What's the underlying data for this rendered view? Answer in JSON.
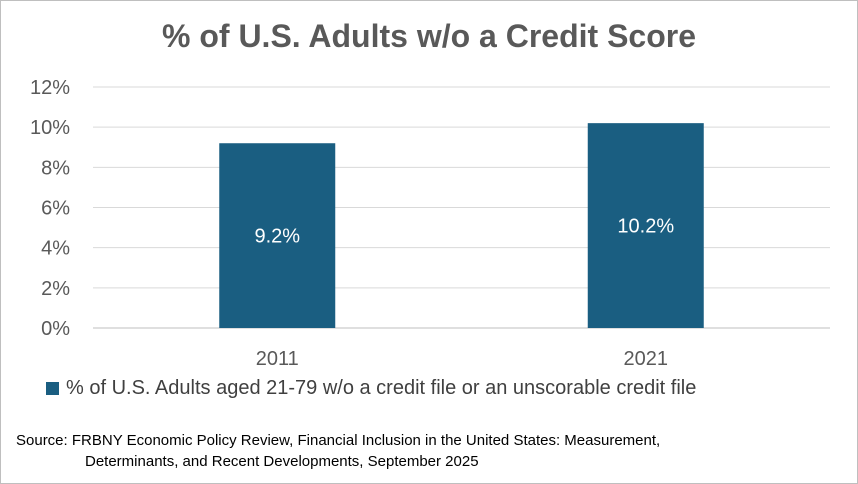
{
  "chart_data": {
    "type": "bar",
    "title": "% of U.S. Adults w/o a Credit Score",
    "categories": [
      "2011",
      "2021"
    ],
    "series": [
      {
        "name": "% of U.S. Adults aged 21-79 w/o a credit file or an unscorable credit file",
        "values": [
          9.2,
          10.2
        ],
        "data_labels": [
          "9.2%",
          "10.2%"
        ],
        "color": "#1a5e81"
      }
    ],
    "ylim": [
      0,
      12
    ],
    "y_ticks": [
      0,
      2,
      4,
      6,
      8,
      10,
      12
    ],
    "y_tick_labels": [
      "0%",
      "2%",
      "4%",
      "6%",
      "8%",
      "10%",
      "12%"
    ],
    "grid": true,
    "legend_position": "bottom"
  },
  "source": {
    "line1": "Source: FRBNY Economic Policy Review, Financial Inclusion in the United States: Measurement,",
    "line2": "Determinants, and Recent Developments, September 2025"
  }
}
